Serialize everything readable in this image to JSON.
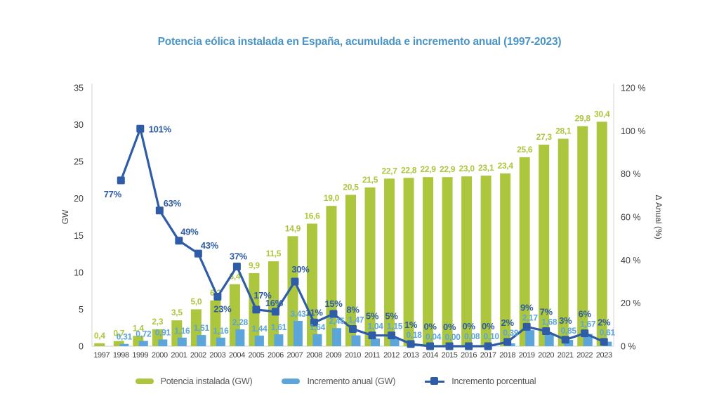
{
  "title": "Potencia eólica instalada en España, acumulada e incremento anual (1997-2023)",
  "colors": {
    "background": "#ffffff",
    "green": "#acc63d",
    "blue": "#5ba5da",
    "line": "#2e5ca6",
    "title": "#4b94c6",
    "axis_text": "#3d3d3d",
    "legend_text": "#565656",
    "axis_line": "#d6d6d6"
  },
  "legend": {
    "items": [
      {
        "label": "Potencia instalada (GW)",
        "swatch": "green-bar"
      },
      {
        "label": "Incremento anual (GW)",
        "swatch": "blue-bar"
      },
      {
        "label": "Incremento porcentual",
        "swatch": "line-marker"
      }
    ]
  },
  "chart_data": {
    "type": "combo-bar-line",
    "title": "Potencia eólica instalada en España, acumulada e incremento anual (1997-2023)",
    "grid": "none",
    "legend_position": "bottom",
    "categories": [
      "1997",
      "1998",
      "1999",
      "2000",
      "2001",
      "2002",
      "2003",
      "2004",
      "2005",
      "2006",
      "2007",
      "2008",
      "2009",
      "2010",
      "2011",
      "2012",
      "2013",
      "2014",
      "2015",
      "2016",
      "2017",
      "2018",
      "2019",
      "2020",
      "2021",
      "2022",
      "2023"
    ],
    "series": [
      {
        "name": "Potencia instalada (GW)",
        "type": "bar",
        "axis": "left",
        "color": "green",
        "values": [
          0.4,
          0.7,
          1.4,
          2.3,
          3.5,
          5.0,
          6.2,
          8.4,
          9.9,
          11.5,
          14.9,
          16.6,
          19.0,
          20.5,
          21.5,
          22.7,
          22.8,
          22.9,
          22.9,
          23.0,
          23.1,
          23.4,
          25.6,
          27.3,
          28.1,
          29.8,
          30.4
        ],
        "labels": [
          "0,4",
          "0,7",
          "1,4",
          "2,3",
          "3,5",
          "5,0",
          "6,2",
          "8,4",
          "9,9",
          "11,5",
          "14,9",
          "16,6",
          "19,0",
          "20,5",
          "21,5",
          "22,7",
          "22,8",
          "22,9",
          "22,9",
          "23,0",
          "23,1",
          "23,4",
          "25,6",
          "27,3",
          "28,1",
          "29,8",
          "30,4"
        ]
      },
      {
        "name": "Incremento anual (GW)",
        "type": "bar",
        "axis": "left",
        "color": "blue",
        "values": [
          null,
          0.31,
          0.72,
          0.91,
          1.16,
          1.51,
          1.16,
          2.28,
          1.44,
          1.61,
          3.43,
          1.64,
          2.45,
          1.47,
          1.04,
          1.15,
          0.18,
          0.04,
          0.0,
          0.08,
          0.1,
          0.39,
          2.17,
          1.68,
          0.85,
          1.67,
          0.61
        ],
        "labels": [
          null,
          "0,31",
          "0,72",
          "0,91",
          "1,16",
          "1,51",
          "1,16",
          "2,28",
          "1,44",
          "1,61",
          "3,43",
          "1,64",
          "2,45",
          "1,47",
          "1,04",
          "1,15",
          "0,18",
          "0,04",
          "0,00",
          "0,08",
          "0,10",
          "0,39",
          "2,17",
          "1,68",
          "0,85",
          "1,67",
          "0,61"
        ]
      },
      {
        "name": "Incremento porcentual",
        "type": "line",
        "axis": "right",
        "color": "line",
        "values": [
          null,
          77,
          101,
          63,
          49,
          43,
          23,
          37,
          17,
          16,
          30,
          11,
          15,
          8,
          5,
          5,
          1,
          0,
          0,
          0,
          0,
          2,
          9,
          7,
          3,
          6,
          2
        ],
        "labels": [
          null,
          "77%",
          "101%",
          "63%",
          "49%",
          "43%",
          "23%",
          "37%",
          "17%",
          "16%",
          "30%",
          "11%",
          "15%",
          "8%",
          "5%",
          "5%",
          "1%",
          "0%",
          "0%",
          "0%",
          "0%",
          "2%",
          "9%",
          "7%",
          "3%",
          "6%",
          "2%"
        ]
      }
    ],
    "left_axis": {
      "title": "GW",
      "min": 0,
      "max": 35,
      "ticks": [
        0,
        5,
        10,
        15,
        20,
        25,
        30,
        35
      ]
    },
    "right_axis": {
      "title": "Δ Anual (%)",
      "min": 0,
      "max": 120,
      "ticks": [
        {
          "v": 0,
          "label": "0 %"
        },
        {
          "v": 20,
          "label": "20 %"
        },
        {
          "v": 40,
          "label": "40 %"
        },
        {
          "v": 60,
          "label": "60 %"
        },
        {
          "v": 80,
          "label": "80 %"
        },
        {
          "v": 100,
          "label": "100 %"
        },
        {
          "v": 120,
          "label": "120 %"
        }
      ]
    },
    "pct_label_offsets": {
      "1": [
        -12,
        24
      ],
      "2": [
        28,
        5
      ],
      "3": [
        18,
        -6
      ],
      "4": [
        15,
        -8
      ],
      "5": [
        16,
        -7
      ],
      "6": [
        7,
        22
      ],
      "7": [
        2,
        -10
      ],
      "8": [
        9,
        -16
      ],
      "9": [
        -2,
        -8
      ],
      "10": [
        8,
        -13
      ]
    }
  }
}
